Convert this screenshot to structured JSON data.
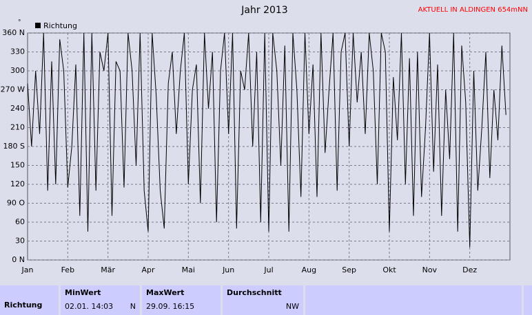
{
  "chart_data": {
    "type": "line",
    "title": "Jahr 2013",
    "subtitle": "AKTUELL IN ALDINGEN 654mNN",
    "y_unit": "°",
    "categories": [
      "Jan",
      null,
      null,
      null,
      null,
      null,
      null,
      null,
      null,
      null,
      "Feb",
      null,
      null,
      null,
      null,
      null,
      null,
      null,
      null,
      null,
      "Mär",
      null,
      null,
      null,
      null,
      null,
      null,
      null,
      null,
      null,
      "Apr",
      null,
      null,
      null,
      null,
      null,
      null,
      null,
      null,
      null,
      "Mai",
      null,
      null,
      null,
      null,
      null,
      null,
      null,
      null,
      null,
      "Jun",
      null,
      null,
      null,
      null,
      null,
      null,
      null,
      null,
      null,
      "Jul",
      null,
      null,
      null,
      null,
      null,
      null,
      null,
      null,
      null,
      "Aug",
      null,
      null,
      null,
      null,
      null,
      null,
      null,
      null,
      null,
      "Sep",
      null,
      null,
      null,
      null,
      null,
      null,
      null,
      null,
      null,
      "Okt",
      null,
      null,
      null,
      null,
      null,
      null,
      null,
      null,
      null,
      "Nov",
      null,
      null,
      null,
      null,
      null,
      null,
      null,
      null,
      null,
      "Dez",
      null,
      null,
      null,
      null,
      null,
      null,
      null,
      null,
      null
    ],
    "series": [
      {
        "name": "Richtung",
        "color": "#000000",
        "values": [
          280,
          180,
          300,
          200,
          360,
          110,
          315,
          120,
          350,
          300,
          115,
          180,
          310,
          70,
          360,
          45,
          360,
          110,
          330,
          300,
          360,
          70,
          315,
          300,
          115,
          360,
          300,
          150,
          360,
          110,
          45,
          360,
          260,
          110,
          50,
          280,
          330,
          200,
          300,
          360,
          120,
          270,
          310,
          90,
          360,
          240,
          330,
          60,
          300,
          360,
          200,
          360,
          50,
          300,
          270,
          360,
          180,
          330,
          60,
          360,
          45,
          360,
          300,
          150,
          340,
          45,
          360,
          270,
          100,
          360,
          200,
          310,
          100,
          360,
          170,
          270,
          360,
          110,
          330,
          360,
          180,
          360,
          250,
          330,
          200,
          360,
          300,
          120,
          360,
          330,
          45,
          290,
          190,
          360,
          120,
          320,
          70,
          330,
          100,
          210,
          360,
          140,
          310,
          70,
          270,
          160,
          360,
          45,
          340,
          250,
          20,
          300,
          110,
          210,
          330,
          130,
          270,
          190,
          340,
          230
        ]
      }
    ],
    "ylim": [
      0,
      360
    ],
    "yticks": [
      {
        "value": 0,
        "label": "0 N"
      },
      30,
      60,
      {
        "value": 90,
        "label": "90 O"
      },
      120,
      150,
      {
        "value": 180,
        "label": "180 S"
      },
      210,
      240,
      {
        "value": 270,
        "label": "270 W"
      },
      300,
      330,
      {
        "value": 360,
        "label": "360 N"
      }
    ],
    "grid": true
  },
  "table": {
    "header": [
      "MinWert",
      "MaxWert",
      "Durchschnitt"
    ],
    "rows": [
      [
        "Richtung",
        "02.01. 14:03",
        "N",
        "29.09. 16:15",
        "NW"
      ]
    ]
  }
}
